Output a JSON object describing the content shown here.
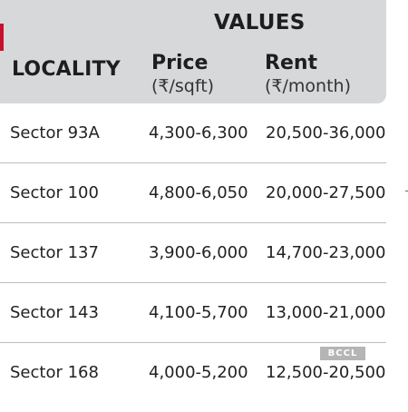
{
  "table": {
    "group_header": "VALUES",
    "columns": {
      "locality": "LOCALITY",
      "price": {
        "name": "Price",
        "unit": "(₹/sqft)"
      },
      "rent": {
        "name": "Rent",
        "unit": "(₹/month)"
      }
    },
    "rows": [
      {
        "locality": "Sector 93A",
        "price": "4,300-6,300",
        "rent": "20,500-36,000"
      },
      {
        "locality": "Sector 100",
        "price": "4,800-6,050",
        "rent": "20,000-27,500"
      },
      {
        "locality": "Sector 137",
        "price": "3,900-6,000",
        "rent": "14,700-23,000"
      },
      {
        "locality": "Sector 143",
        "price": "4,100-5,700",
        "rent": "13,000-21,000"
      },
      {
        "locality": "Sector 168",
        "price": "4,000-5,200",
        "rent": "12,500-20,500"
      }
    ]
  },
  "watermark": "BCCL",
  "colors": {
    "header_bg": "#d7d8da",
    "accent": "#c8102e",
    "divider": "#bdbdbd"
  }
}
